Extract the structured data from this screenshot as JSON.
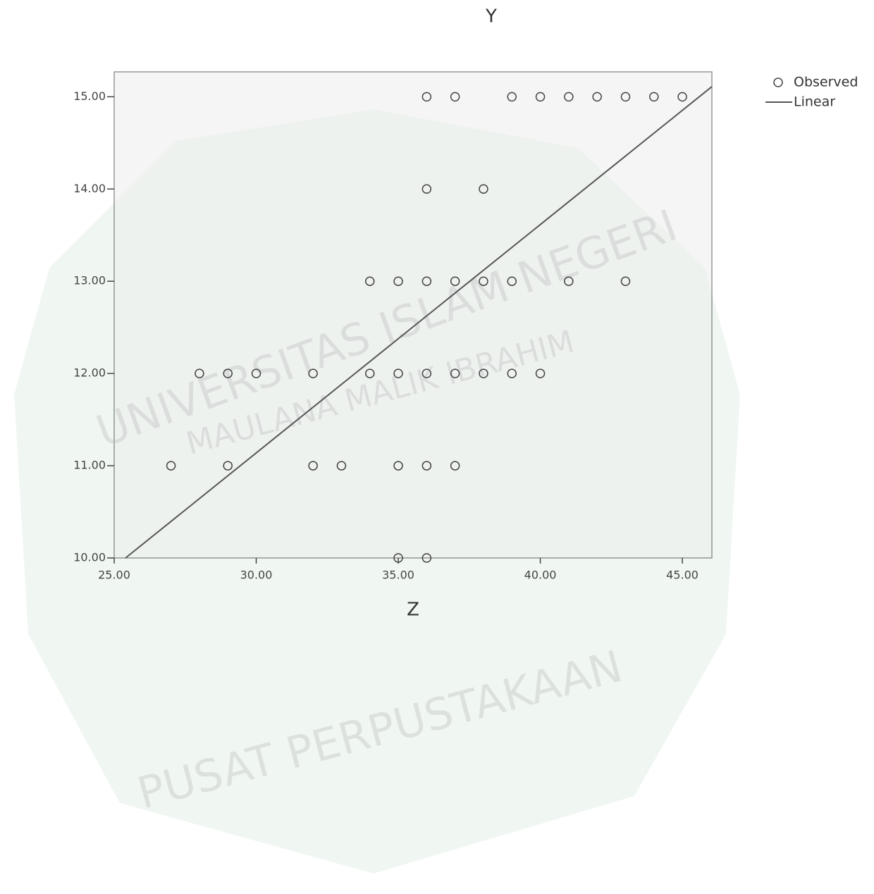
{
  "chart_data": {
    "type": "scatter",
    "title": "Y",
    "x_label": "Z",
    "watermark": [
      "UNIVERSITAS ISLAM NEGERI",
      "MAULANA MALIK IBRAHIM",
      "PUSAT PERPUSTAKAAN"
    ],
    "xlim": [
      25,
      46.04
    ],
    "ylim": [
      10,
      15.27
    ],
    "xticks": [
      {
        "value": 25,
        "label": "25.00"
      },
      {
        "value": 30,
        "label": "30.00"
      },
      {
        "value": 35,
        "label": "35.00"
      },
      {
        "value": 40,
        "label": "40.00"
      },
      {
        "value": 45,
        "label": "45.00"
      }
    ],
    "yticks": [
      {
        "value": 10,
        "label": "10.00"
      },
      {
        "value": 11,
        "label": "11.00"
      },
      {
        "value": 12,
        "label": "12.00"
      },
      {
        "value": 13,
        "label": "13.00"
      },
      {
        "value": 14,
        "label": "14.00"
      },
      {
        "value": 15,
        "label": "15.00"
      }
    ],
    "series": [
      {
        "name": "Observed",
        "type": "scatter",
        "color": "#444444",
        "x": [
          36,
          37,
          39,
          40,
          41,
          42,
          43,
          44,
          45,
          36,
          38,
          34,
          35,
          36,
          37,
          38,
          39,
          41,
          43,
          28,
          29,
          30,
          32,
          34,
          35,
          36,
          37,
          38,
          39,
          40,
          27,
          29,
          32,
          33,
          35,
          36,
          37,
          35,
          36
        ],
        "values": [
          15,
          15,
          15,
          15,
          15,
          15,
          15,
          15,
          15,
          14,
          14,
          13,
          13,
          13,
          13,
          13,
          13,
          13,
          13,
          12,
          12,
          12,
          12,
          12,
          12,
          12,
          12,
          12,
          12,
          12,
          11,
          11,
          11,
          11,
          11,
          11,
          11,
          10,
          10
        ]
      },
      {
        "name": "Linear",
        "type": "line",
        "color": "#555555",
        "x": [
          25.4,
          46.04
        ],
        "values": [
          10,
          15.11
        ]
      }
    ]
  }
}
